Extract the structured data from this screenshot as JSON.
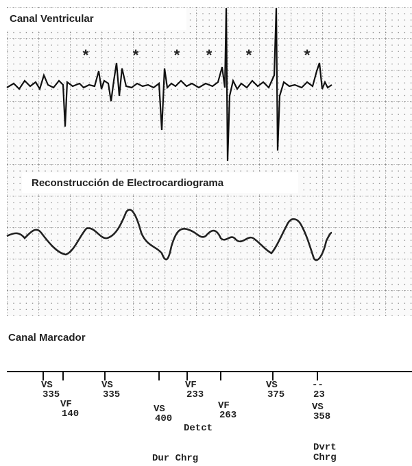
{
  "channels": {
    "ventricular": {
      "title": "Canal Ventricular",
      "asterisks": [
        "*",
        "*",
        "*",
        "*",
        "*",
        "*"
      ]
    },
    "reconstruction": {
      "title": "Reconstrucción de Electrocardiograma"
    },
    "marker": {
      "title": "Canal Marcador",
      "events": [
        {
          "label": "VS",
          "value": 335
        },
        {
          "label": "VF",
          "value": 140
        },
        {
          "label": "VS",
          "value": 335
        },
        {
          "label": "VS",
          "value": 400
        },
        {
          "label": "VF",
          "value": 233
        },
        {
          "label": "VF",
          "value": 263
        },
        {
          "label": "VS",
          "value": 375
        },
        {
          "label": "--",
          "value": 23
        },
        {
          "label": "VS",
          "value": 358
        }
      ],
      "annotations": [
        "Detct",
        "Dur Chrg",
        "Dvrt",
        "Chrg"
      ]
    }
  }
}
